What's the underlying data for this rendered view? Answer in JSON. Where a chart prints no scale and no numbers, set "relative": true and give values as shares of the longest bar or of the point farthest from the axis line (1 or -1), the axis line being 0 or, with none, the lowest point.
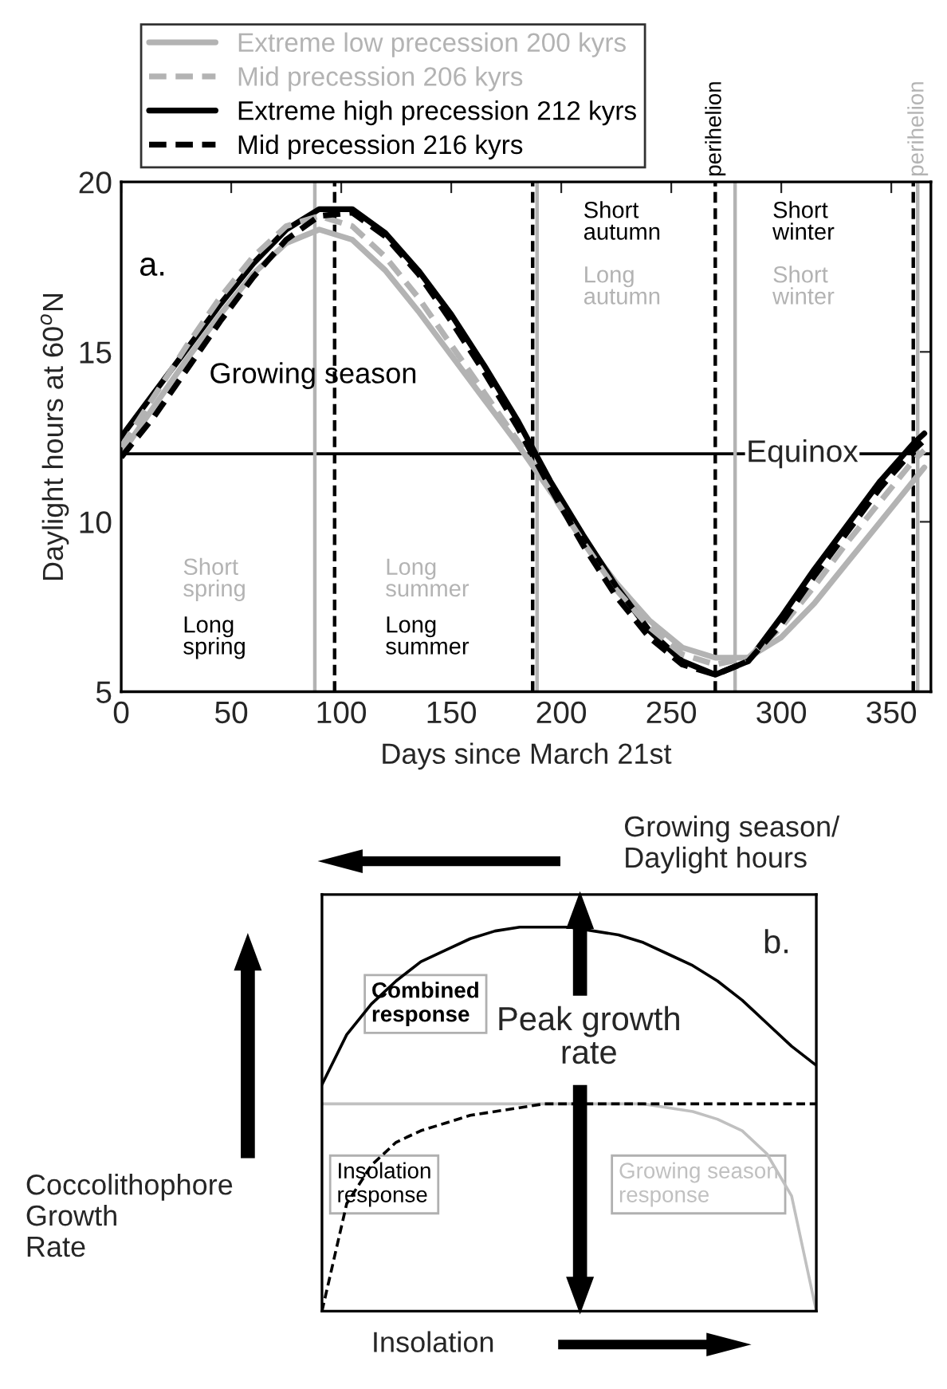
{
  "chart_data": [
    {
      "type": "line",
      "xlabel": "Days since March 21st",
      "ylabel": "Daylight hours at 60$^{o}$N",
      "xlim": [
        0,
        368
      ],
      "ylim": [
        5,
        20
      ],
      "xticks": [
        0,
        50,
        100,
        150,
        200,
        250,
        300,
        350
      ],
      "yticks": [
        5,
        10,
        15,
        20
      ],
      "legend": "top left",
      "grid": false,
      "x": [
        0,
        15,
        30,
        45,
        60,
        75,
        90,
        105,
        120,
        135,
        150,
        165,
        180,
        195,
        210,
        225,
        240,
        255,
        270,
        285,
        300,
        315,
        330,
        345,
        360,
        365
      ],
      "series": [
        {
          "name": "Extreme low precession 200 kyrs",
          "color": "#b3b3b3",
          "line_style": "solid",
          "values": [
            12.0,
            13.4,
            14.8,
            16.1,
            17.3,
            18.2,
            18.6,
            18.3,
            17.4,
            16.2,
            14.9,
            13.6,
            12.3,
            10.9,
            9.5,
            8.2,
            7.1,
            6.3,
            6.0,
            6.0,
            6.6,
            7.6,
            8.8,
            10.0,
            11.2,
            11.6
          ]
        },
        {
          "name": "Mid precession 206 kyrs",
          "color": "#b3b3b3",
          "line_style": "dashed",
          "values": [
            12.2,
            13.7,
            15.2,
            16.6,
            17.8,
            18.7,
            19.0,
            18.7,
            17.8,
            16.6,
            15.2,
            13.8,
            12.4,
            10.9,
            9.4,
            8.0,
            6.9,
            6.1,
            5.8,
            6.0,
            6.9,
            8.1,
            9.4,
            10.6,
            11.8,
            12.1
          ]
        },
        {
          "name": "Extreme high precession 212 kyrs",
          "color": "#000000",
          "line_style": "solid",
          "values": [
            12.5,
            13.8,
            15.1,
            16.4,
            17.6,
            18.6,
            19.2,
            19.2,
            18.5,
            17.4,
            16.1,
            14.6,
            13.0,
            11.2,
            9.6,
            8.1,
            6.8,
            5.9,
            5.5,
            5.9,
            7.2,
            8.6,
            9.9,
            11.2,
            12.3,
            12.6
          ]
        },
        {
          "name": "Mid precession 216 kyrs",
          "color": "#000000",
          "line_style": "dashed",
          "values": [
            11.9,
            13.1,
            14.5,
            15.9,
            17.2,
            18.3,
            19.0,
            19.1,
            18.4,
            17.3,
            15.9,
            14.4,
            12.8,
            11.0,
            9.3,
            7.8,
            6.6,
            5.8,
            5.5,
            5.9,
            7.0,
            8.4,
            9.7,
            11.0,
            12.1,
            12.4
          ]
        }
      ],
      "ref_lines": [
        {
          "axis": "y",
          "value": 12,
          "label": "Equinox",
          "color": "#000000",
          "line_style": "solid"
        },
        {
          "axis": "x",
          "value": 88,
          "color": "#b3b3b3",
          "line_style": "solid"
        },
        {
          "axis": "x",
          "value": 97,
          "color": "#000000",
          "line_style": "dashed"
        },
        {
          "axis": "x",
          "value": 187,
          "color": "#000000",
          "line_style": "dashed"
        },
        {
          "axis": "x",
          "value": 189,
          "color": "#b3b3b3",
          "line_style": "solid"
        },
        {
          "axis": "x",
          "value": 270,
          "label": "perihelion",
          "color": "#000000",
          "line_style": "dashed"
        },
        {
          "axis": "x",
          "value": 279,
          "color": "#b3b3b3",
          "line_style": "solid"
        },
        {
          "axis": "x",
          "value": 360,
          "color": "#000000",
          "line_style": "dashed"
        },
        {
          "axis": "x",
          "value": 362,
          "label": "perihelion",
          "color": "#b3b3b3",
          "line_style": "solid"
        }
      ],
      "annotations": [
        "a.",
        "Growing season",
        "Short\nautumn",
        "Long\nautumn",
        "Short\nwinter",
        "Short\nwinter",
        "Short\nspring",
        "Long\nspring",
        "Long\nsummer",
        "Long\nsummer"
      ]
    },
    {
      "type": "line",
      "relative": true,
      "xlabel": "Insolation",
      "x2label": "Growing season/\nDaylight hours",
      "ylabel": "Coccolithophore Growth Rate",
      "grid": false,
      "categories": [
        null,
        null,
        null,
        null,
        null,
        null,
        null,
        null,
        null,
        null,
        null,
        null,
        null,
        null,
        null,
        null,
        null,
        null,
        null,
        null,
        null
      ],
      "series": [
        {
          "name": "Combined response",
          "color": "#000000",
          "line_style": "solid",
          "values": [
            0.59,
            0.72,
            0.8,
            0.86,
            0.91,
            0.94,
            0.97,
            0.99,
            1.0,
            1.0,
            1.0,
            0.99,
            0.98,
            0.96,
            0.93,
            0.9,
            0.86,
            0.81,
            0.75,
            0.69,
            0.64
          ]
        },
        {
          "name": "Insolation response",
          "color": "#000000",
          "line_style": "dashed",
          "values": [
            0.0,
            0.28,
            0.38,
            0.44,
            0.47,
            0.49,
            0.51,
            0.52,
            0.53,
            0.54,
            0.54,
            0.54,
            0.54,
            0.54,
            0.54,
            0.54,
            0.54,
            0.54,
            0.54,
            0.54,
            0.54
          ]
        },
        {
          "name": "Growing season response",
          "color": "#c0c0c0",
          "line_style": "solid",
          "values": [
            0.54,
            0.54,
            0.54,
            0.54,
            0.54,
            0.54,
            0.54,
            0.54,
            0.54,
            0.54,
            0.54,
            0.54,
            0.54,
            0.54,
            0.53,
            0.52,
            0.5,
            0.47,
            0.41,
            0.3,
            0.0
          ]
        }
      ],
      "annotations": [
        "b.",
        "Peak growth rate"
      ]
    }
  ]
}
